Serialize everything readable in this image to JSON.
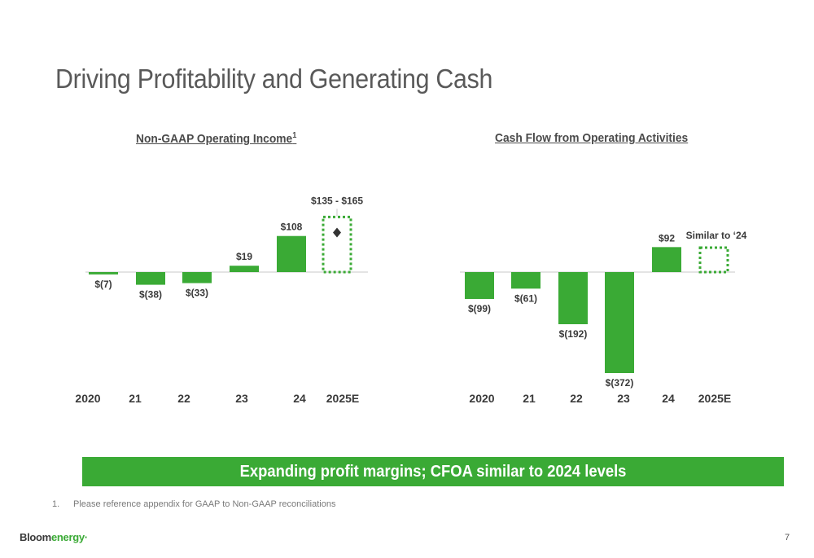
{
  "page": {
    "title": "Driving Profitability and Generating Cash",
    "banner": "Expanding profit margins; CFOA similar to 2024 levels",
    "footnote_number": "1.",
    "footnote_text": "Please reference appendix for GAAP to Non-GAAP reconciliations",
    "logo_part1": "Bloom",
    "logo_part2": "energy",
    "logo_mark": "·",
    "page_number": "7"
  },
  "colors": {
    "bar": "#3aaa35",
    "axis": "#c8c8c8",
    "marker": "#333333"
  },
  "chart_data": [
    {
      "type": "bar",
      "title": "Non-GAAP Operating Income",
      "title_superscript": "1",
      "categories": [
        "2020",
        "21",
        "22",
        "23",
        "24",
        "2025E"
      ],
      "values": [
        -7,
        -38,
        -33,
        19,
        108,
        null
      ],
      "labels": [
        "$(7)",
        "$(38)",
        "$(33)",
        "$19",
        "$108",
        "$135 - $165"
      ],
      "estimate": {
        "low": 135,
        "high": 165,
        "mid": 150
      },
      "ylim": [
        -40,
        165
      ]
    },
    {
      "type": "bar",
      "title": "Cash Flow from Operating Activities",
      "categories": [
        "2020",
        "21",
        "22",
        "23",
        "24",
        "2025E"
      ],
      "values": [
        -99,
        -61,
        -192,
        -372,
        92,
        null
      ],
      "labels": [
        "$(99)",
        "$(61)",
        "$(192)",
        "$(372)",
        "$92",
        "Similar to ‘24"
      ],
      "estimate": {
        "similar_to": "24"
      },
      "ylim": [
        -372,
        92
      ]
    }
  ]
}
